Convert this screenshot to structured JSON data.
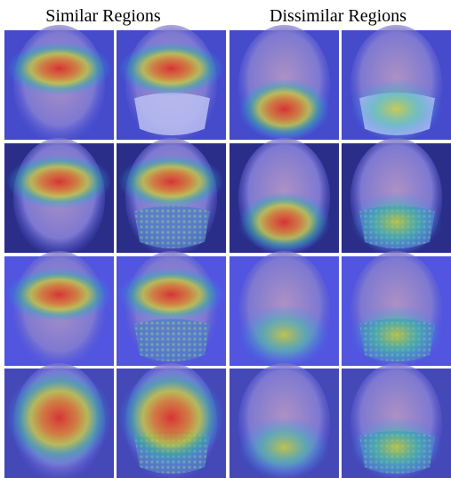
{
  "header": {
    "left": "Similar Regions",
    "right": "Dissimilar Regions"
  }
}
